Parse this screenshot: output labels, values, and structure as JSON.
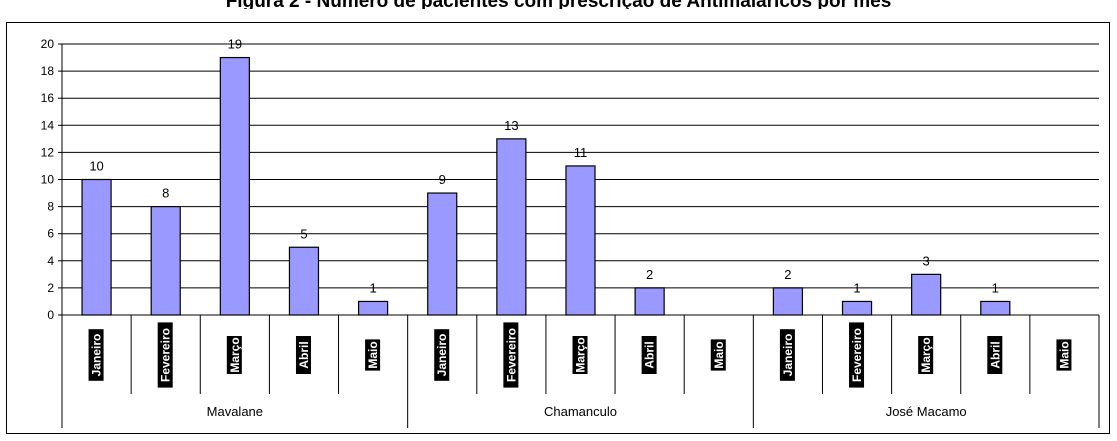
{
  "title_cut": "Figura 2 - Número de pacientes com prescrição de Antimaláricos por mês",
  "chart_data": {
    "type": "bar",
    "groups": [
      "Mavalane",
      "Chamanculo",
      "José Macamo"
    ],
    "months": [
      "Janeiro",
      "Fevereiro",
      "Março",
      "Abril",
      "Maio"
    ],
    "series": [
      {
        "group": "Mavalane",
        "values": [
          10,
          8,
          19,
          5,
          1
        ]
      },
      {
        "group": "Chamanculo",
        "values": [
          9,
          13,
          11,
          2,
          null
        ]
      },
      {
        "group": "José Macamo",
        "values": [
          2,
          1,
          3,
          1,
          null
        ]
      }
    ],
    "ylim": [
      0,
      20
    ],
    "yticks": [
      0,
      2,
      4,
      6,
      8,
      10,
      12,
      14,
      16,
      18,
      20
    ],
    "grid": true,
    "bar_color": "#9999ff",
    "data_labels": true
  }
}
